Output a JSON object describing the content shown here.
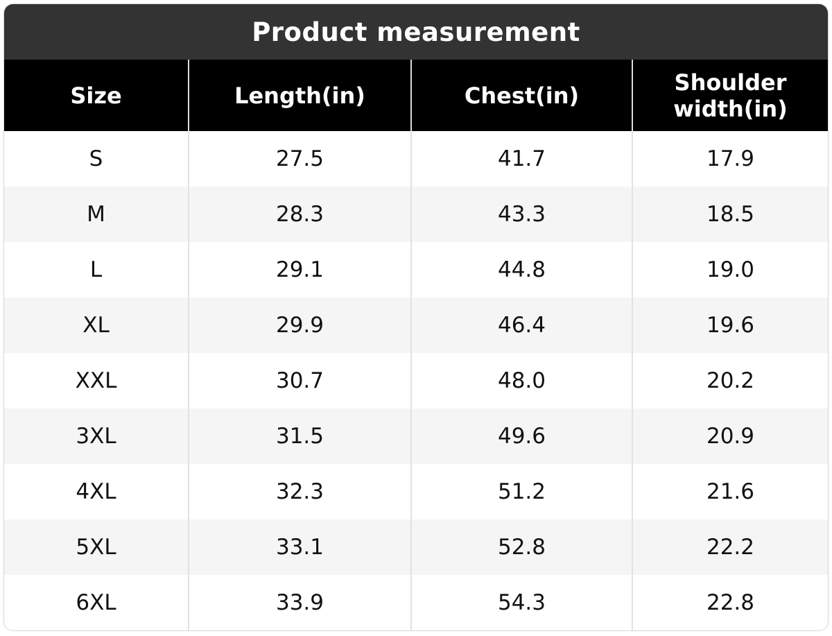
{
  "title": "Product measurement",
  "table": {
    "header": [
      "Size",
      "Length(in)",
      "Chest(in)",
      "Shoulder width(in)"
    ],
    "rows": [
      [
        "S",
        "27.5",
        "41.7",
        "17.9"
      ],
      [
        "M",
        "28.3",
        "43.3",
        "18.5"
      ],
      [
        "L",
        "29.1",
        "44.8",
        "19.0"
      ],
      [
        "XL",
        "29.9",
        "46.4",
        "19.6"
      ],
      [
        "XXL",
        "30.7",
        "48.0",
        "20.2"
      ],
      [
        "3XL",
        "31.5",
        "49.6",
        "20.9"
      ],
      [
        "4XL",
        "32.3",
        "51.2",
        "21.6"
      ],
      [
        "5XL",
        "33.1",
        "52.8",
        "22.2"
      ],
      [
        "6XL",
        "33.9",
        "54.3",
        "22.8"
      ]
    ]
  }
}
